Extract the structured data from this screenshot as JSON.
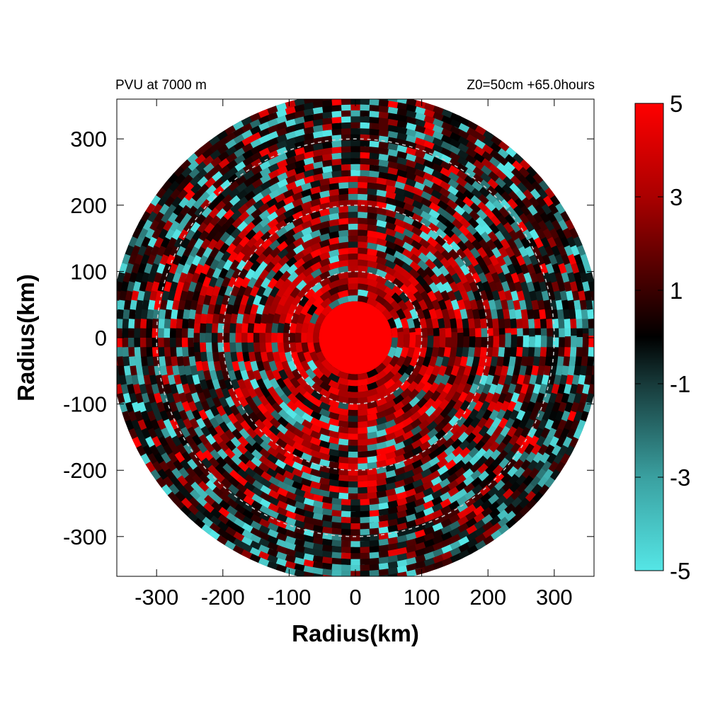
{
  "chart_data": {
    "type": "heatmap",
    "title_left": "PVU at  7000 m",
    "title_right": "Z0=50cm  +65.0hours",
    "xlabel": "Radius(km)",
    "ylabel": "Radius(km)",
    "xlim": [
      -360,
      360
    ],
    "ylim": [
      -360,
      360
    ],
    "x_ticks": [
      -300,
      -200,
      -100,
      0,
      100,
      200,
      300
    ],
    "y_ticks": [
      300,
      200,
      100,
      0,
      -100,
      -200,
      -300
    ],
    "x_tick_labels": [
      "-300",
      "-200",
      "-100",
      "0",
      "100",
      "200",
      "300"
    ],
    "y_tick_labels": [
      "300",
      "200",
      "100",
      "0",
      "-100",
      "-200",
      "-300"
    ],
    "domain_radius_km": 370,
    "reference_circles_km": [
      100,
      200,
      300
    ],
    "core_radius_km": 55,
    "colorbar": {
      "range": [
        -5,
        5
      ],
      "tick_values": [
        5,
        3,
        1,
        -1,
        -3,
        -5
      ],
      "tick_labels": [
        "5",
        "3",
        "1",
        "-1",
        "-3",
        "-5"
      ],
      "color_stops": [
        {
          "value": -5,
          "color": "#55e6e6"
        },
        {
          "value": -3,
          "color": "#3aa0a0"
        },
        {
          "value": -1,
          "color": "#173a3a"
        },
        {
          "value": 0,
          "color": "#000000"
        },
        {
          "value": 1,
          "color": "#3a0000"
        },
        {
          "value": 3,
          "color": "#aa0000"
        },
        {
          "value": 5,
          "color": "#ff0000"
        }
      ]
    }
  }
}
